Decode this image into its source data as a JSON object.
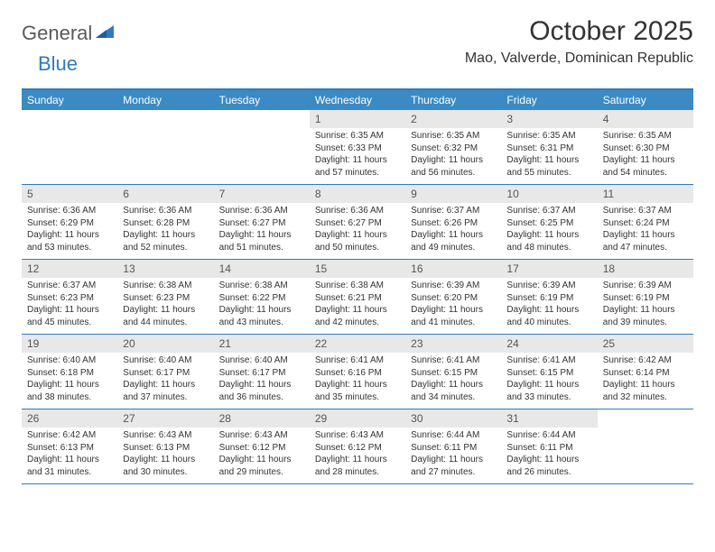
{
  "logo": {
    "textGeneral": "General",
    "textBlue": "Blue"
  },
  "title": "October 2025",
  "location": "Mao, Valverde, Dominican Republic",
  "colors": {
    "headerBar": "#3b8ac4",
    "accentLine": "#2f7abf",
    "dayBar": "#e8e8e8",
    "text": "#333333",
    "logoGray": "#5a5a5a",
    "logoBlue": "#2f7abf",
    "background": "#ffffff"
  },
  "daysOfWeek": [
    "Sunday",
    "Monday",
    "Tuesday",
    "Wednesday",
    "Thursday",
    "Friday",
    "Saturday"
  ],
  "weeks": [
    [
      {
        "n": "",
        "lines": []
      },
      {
        "n": "",
        "lines": []
      },
      {
        "n": "",
        "lines": []
      },
      {
        "n": "1",
        "lines": [
          "Sunrise: 6:35 AM",
          "Sunset: 6:33 PM",
          "Daylight: 11 hours",
          "and 57 minutes."
        ]
      },
      {
        "n": "2",
        "lines": [
          "Sunrise: 6:35 AM",
          "Sunset: 6:32 PM",
          "Daylight: 11 hours",
          "and 56 minutes."
        ]
      },
      {
        "n": "3",
        "lines": [
          "Sunrise: 6:35 AM",
          "Sunset: 6:31 PM",
          "Daylight: 11 hours",
          "and 55 minutes."
        ]
      },
      {
        "n": "4",
        "lines": [
          "Sunrise: 6:35 AM",
          "Sunset: 6:30 PM",
          "Daylight: 11 hours",
          "and 54 minutes."
        ]
      }
    ],
    [
      {
        "n": "5",
        "lines": [
          "Sunrise: 6:36 AM",
          "Sunset: 6:29 PM",
          "Daylight: 11 hours",
          "and 53 minutes."
        ]
      },
      {
        "n": "6",
        "lines": [
          "Sunrise: 6:36 AM",
          "Sunset: 6:28 PM",
          "Daylight: 11 hours",
          "and 52 minutes."
        ]
      },
      {
        "n": "7",
        "lines": [
          "Sunrise: 6:36 AM",
          "Sunset: 6:27 PM",
          "Daylight: 11 hours",
          "and 51 minutes."
        ]
      },
      {
        "n": "8",
        "lines": [
          "Sunrise: 6:36 AM",
          "Sunset: 6:27 PM",
          "Daylight: 11 hours",
          "and 50 minutes."
        ]
      },
      {
        "n": "9",
        "lines": [
          "Sunrise: 6:37 AM",
          "Sunset: 6:26 PM",
          "Daylight: 11 hours",
          "and 49 minutes."
        ]
      },
      {
        "n": "10",
        "lines": [
          "Sunrise: 6:37 AM",
          "Sunset: 6:25 PM",
          "Daylight: 11 hours",
          "and 48 minutes."
        ]
      },
      {
        "n": "11",
        "lines": [
          "Sunrise: 6:37 AM",
          "Sunset: 6:24 PM",
          "Daylight: 11 hours",
          "and 47 minutes."
        ]
      }
    ],
    [
      {
        "n": "12",
        "lines": [
          "Sunrise: 6:37 AM",
          "Sunset: 6:23 PM",
          "Daylight: 11 hours",
          "and 45 minutes."
        ]
      },
      {
        "n": "13",
        "lines": [
          "Sunrise: 6:38 AM",
          "Sunset: 6:23 PM",
          "Daylight: 11 hours",
          "and 44 minutes."
        ]
      },
      {
        "n": "14",
        "lines": [
          "Sunrise: 6:38 AM",
          "Sunset: 6:22 PM",
          "Daylight: 11 hours",
          "and 43 minutes."
        ]
      },
      {
        "n": "15",
        "lines": [
          "Sunrise: 6:38 AM",
          "Sunset: 6:21 PM",
          "Daylight: 11 hours",
          "and 42 minutes."
        ]
      },
      {
        "n": "16",
        "lines": [
          "Sunrise: 6:39 AM",
          "Sunset: 6:20 PM",
          "Daylight: 11 hours",
          "and 41 minutes."
        ]
      },
      {
        "n": "17",
        "lines": [
          "Sunrise: 6:39 AM",
          "Sunset: 6:19 PM",
          "Daylight: 11 hours",
          "and 40 minutes."
        ]
      },
      {
        "n": "18",
        "lines": [
          "Sunrise: 6:39 AM",
          "Sunset: 6:19 PM",
          "Daylight: 11 hours",
          "and 39 minutes."
        ]
      }
    ],
    [
      {
        "n": "19",
        "lines": [
          "Sunrise: 6:40 AM",
          "Sunset: 6:18 PM",
          "Daylight: 11 hours",
          "and 38 minutes."
        ]
      },
      {
        "n": "20",
        "lines": [
          "Sunrise: 6:40 AM",
          "Sunset: 6:17 PM",
          "Daylight: 11 hours",
          "and 37 minutes."
        ]
      },
      {
        "n": "21",
        "lines": [
          "Sunrise: 6:40 AM",
          "Sunset: 6:17 PM",
          "Daylight: 11 hours",
          "and 36 minutes."
        ]
      },
      {
        "n": "22",
        "lines": [
          "Sunrise: 6:41 AM",
          "Sunset: 6:16 PM",
          "Daylight: 11 hours",
          "and 35 minutes."
        ]
      },
      {
        "n": "23",
        "lines": [
          "Sunrise: 6:41 AM",
          "Sunset: 6:15 PM",
          "Daylight: 11 hours",
          "and 34 minutes."
        ]
      },
      {
        "n": "24",
        "lines": [
          "Sunrise: 6:41 AM",
          "Sunset: 6:15 PM",
          "Daylight: 11 hours",
          "and 33 minutes."
        ]
      },
      {
        "n": "25",
        "lines": [
          "Sunrise: 6:42 AM",
          "Sunset: 6:14 PM",
          "Daylight: 11 hours",
          "and 32 minutes."
        ]
      }
    ],
    [
      {
        "n": "26",
        "lines": [
          "Sunrise: 6:42 AM",
          "Sunset: 6:13 PM",
          "Daylight: 11 hours",
          "and 31 minutes."
        ]
      },
      {
        "n": "27",
        "lines": [
          "Sunrise: 6:43 AM",
          "Sunset: 6:13 PM",
          "Daylight: 11 hours",
          "and 30 minutes."
        ]
      },
      {
        "n": "28",
        "lines": [
          "Sunrise: 6:43 AM",
          "Sunset: 6:12 PM",
          "Daylight: 11 hours",
          "and 29 minutes."
        ]
      },
      {
        "n": "29",
        "lines": [
          "Sunrise: 6:43 AM",
          "Sunset: 6:12 PM",
          "Daylight: 11 hours",
          "and 28 minutes."
        ]
      },
      {
        "n": "30",
        "lines": [
          "Sunrise: 6:44 AM",
          "Sunset: 6:11 PM",
          "Daylight: 11 hours",
          "and 27 minutes."
        ]
      },
      {
        "n": "31",
        "lines": [
          "Sunrise: 6:44 AM",
          "Sunset: 6:11 PM",
          "Daylight: 11 hours",
          "and 26 minutes."
        ]
      },
      {
        "n": "",
        "lines": []
      }
    ]
  ]
}
